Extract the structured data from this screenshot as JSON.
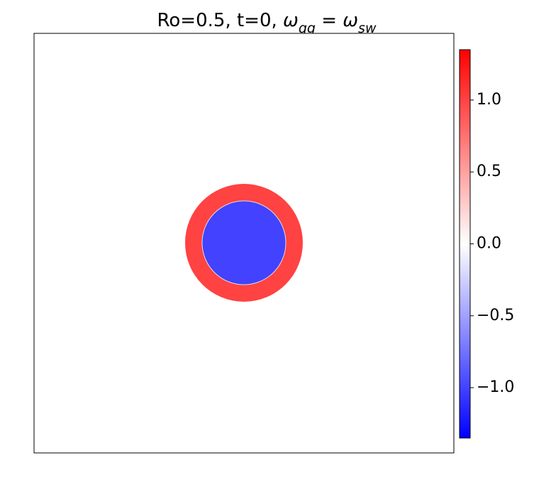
{
  "chart_data": {
    "type": "heatmap",
    "title_parts": [
      "Ro=0.5, t=0, ",
      "ω",
      "qg",
      " = ",
      "ω",
      "sw"
    ],
    "categories": [
      "disk",
      "ring",
      "background"
    ],
    "values": [
      -1.0,
      1.0,
      0.0
    ],
    "colormap": "bwr",
    "clim": [
      -1.35,
      1.35
    ],
    "cticks": [
      {
        "value": -1.0,
        "label": "−1.0"
      },
      {
        "value": -0.5,
        "label": "−0.5"
      },
      {
        "value": 0,
        "label": "0.0"
      },
      {
        "value": 0.5,
        "label": "0.5"
      },
      {
        "value": 1.0,
        "label": "1.0"
      }
    ]
  }
}
